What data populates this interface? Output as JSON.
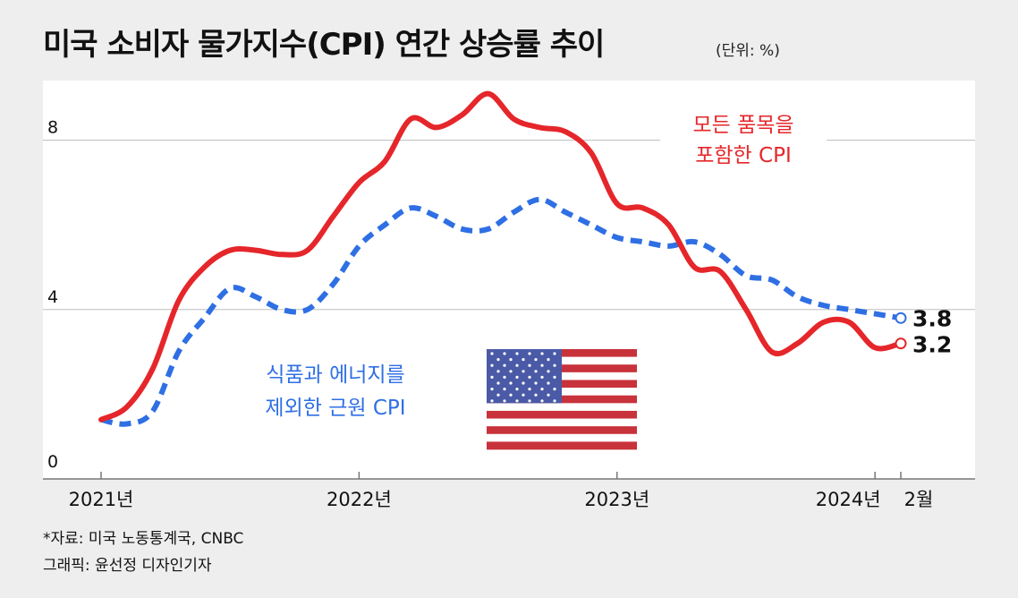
{
  "title": "미국 소비자 물가지수(CPI) 연간 상승률 추이",
  "unit": "(단위: %)",
  "source": "*자료: 미국 노동통계국, CNBC",
  "graphic": "그래픽: 윤선정 디자인기자",
  "colors": {
    "headline": "#e5262a",
    "core": "#2f6fe4",
    "grid": "#bdbdbd",
    "flag_red": "#c8323a",
    "flag_blue": "#4a5aa6"
  },
  "chart_data": {
    "type": "line",
    "title": "미국 소비자 물가지수(CPI) 연간 상승률 추이",
    "ylabel": "(단위: %)",
    "ylim": [
      0,
      9
    ],
    "yticks": [
      0,
      4,
      8
    ],
    "xlim": [
      2021.0,
      2024.3
    ],
    "xticks": [
      {
        "value": 2021.0,
        "label": "2021년"
      },
      {
        "value": 2022.0,
        "label": "2022년"
      },
      {
        "value": 2023.0,
        "label": "2023년"
      },
      {
        "value": 2024.0,
        "label": "2024년"
      },
      {
        "value": 2024.1,
        "label": "2월"
      }
    ],
    "grid": true,
    "series": [
      {
        "name": "모든 품목을 포함한 CPI",
        "style": "solid",
        "color": "#e5262a",
        "x": [
          2021.0,
          2021.1,
          2021.2,
          2021.3,
          2021.4,
          2021.5,
          2021.6,
          2021.7,
          2021.8,
          2021.9,
          2022.0,
          2022.1,
          2022.2,
          2022.3,
          2022.4,
          2022.5,
          2022.6,
          2022.7,
          2022.8,
          2022.9,
          2023.0,
          2023.1,
          2023.2,
          2023.3,
          2023.4,
          2023.5,
          2023.6,
          2023.7,
          2023.8,
          2023.9,
          2024.0,
          2024.1
        ],
        "values": [
          1.4,
          1.7,
          2.6,
          4.2,
          5.0,
          5.4,
          5.4,
          5.3,
          5.4,
          6.2,
          7.0,
          7.5,
          8.5,
          8.3,
          8.6,
          9.1,
          8.5,
          8.3,
          8.2,
          7.7,
          6.5,
          6.4,
          6.0,
          5.0,
          4.9,
          4.0,
          3.0,
          3.2,
          3.7,
          3.7,
          3.1,
          3.2
        ]
      },
      {
        "name": "식품과 에너지를 제외한 근원 CPI",
        "style": "dashed",
        "color": "#2f6fe4",
        "x": [
          2021.0,
          2021.1,
          2021.2,
          2021.3,
          2021.4,
          2021.5,
          2021.6,
          2021.7,
          2021.8,
          2021.9,
          2022.0,
          2022.1,
          2022.2,
          2022.3,
          2022.4,
          2022.5,
          2022.6,
          2022.7,
          2022.8,
          2022.9,
          2023.0,
          2023.1,
          2023.2,
          2023.3,
          2023.4,
          2023.5,
          2023.6,
          2023.7,
          2023.8,
          2023.9,
          2024.0,
          2024.1
        ],
        "values": [
          1.4,
          1.3,
          1.6,
          3.0,
          3.8,
          4.5,
          4.3,
          4.0,
          4.0,
          4.6,
          5.5,
          6.0,
          6.4,
          6.2,
          5.9,
          5.9,
          6.3,
          6.6,
          6.3,
          6.0,
          5.7,
          5.6,
          5.5,
          5.6,
          5.3,
          4.8,
          4.7,
          4.3,
          4.1,
          4.0,
          3.9,
          3.8
        ]
      }
    ],
    "end_labels": [
      "3.8",
      "3.2"
    ],
    "annotations": {
      "headline_lines": [
        "모든 품목을",
        "포함한 CPI"
      ],
      "core_lines": [
        "식품과 에너지를",
        "제외한 근원 CPI"
      ]
    }
  }
}
